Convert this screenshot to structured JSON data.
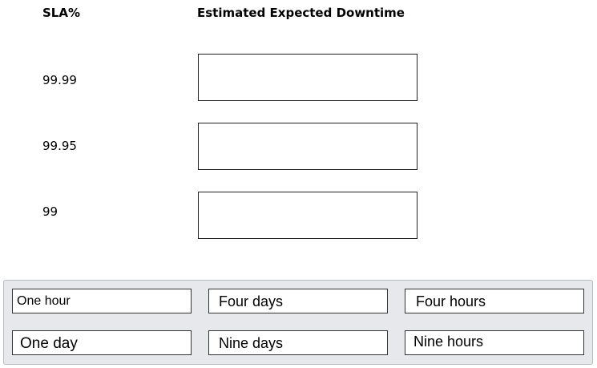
{
  "headers": {
    "sla": "SLA%",
    "downtime": "Estimated Expected Downtime"
  },
  "rows": [
    {
      "sla": "99.99"
    },
    {
      "sla": "99.95"
    },
    {
      "sla": "99"
    }
  ],
  "options": [
    "One hour",
    "Four days",
    "Four hours",
    "One day",
    "Nine days",
    "Nine hours"
  ]
}
